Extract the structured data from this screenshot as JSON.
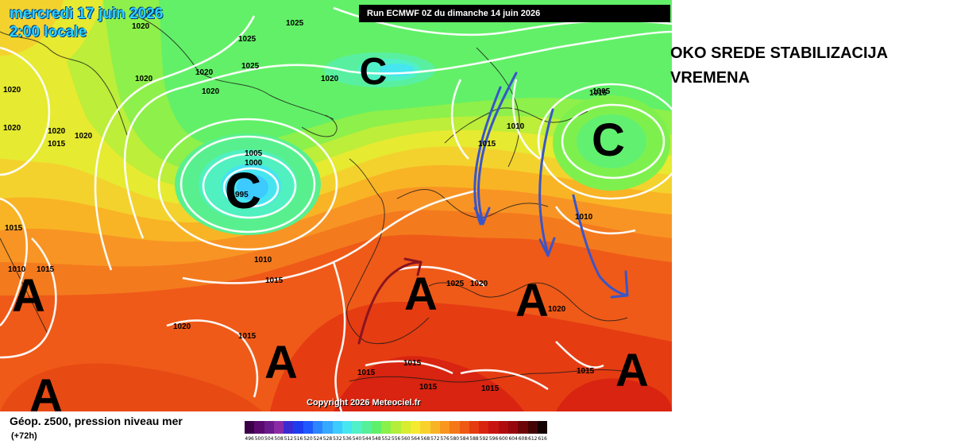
{
  "map": {
    "date_label": "mercredi 17 juin 2026",
    "time_label": "2:00 locale",
    "run_banner": "Run ECMWF 0Z du dimanche 14 juin 2026",
    "copyright": "Copyright 2026 Meteociel.fr",
    "high_symbol": "A",
    "low_symbol": "C",
    "isobar_labels": [
      "1020",
      "1025",
      "1025",
      "1020",
      "1020",
      "1020",
      "1025",
      "1020",
      "1020",
      "1020",
      "1020",
      "1005",
      "1000",
      "995",
      "1010",
      "1015",
      "1015",
      "1015",
      "1020",
      "1020",
      "1015",
      "1010",
      "1015",
      "1005",
      "1010",
      "1010",
      "1015",
      "1025",
      "1020",
      "1020",
      "1020",
      "1015",
      "1015",
      "1015",
      "1015",
      "1015",
      "1015"
    ],
    "accent_colors": {
      "isobar": "#ffffff",
      "arrow_blue": "#3a55c8",
      "arrow_red": "#8a1420"
    }
  },
  "caption": {
    "line1": "OKO SREDE STABILIZACIJA",
    "line2": "VREMENA"
  },
  "legend": {
    "title": "Géop. z500, pression niveau mer",
    "subtitle": "(+72h)",
    "ticks": [
      "496",
      "500",
      "504",
      "508",
      "512",
      "516",
      "520",
      "524",
      "528",
      "532",
      "536",
      "540",
      "544",
      "548",
      "552",
      "556",
      "560",
      "564",
      "568",
      "572",
      "576",
      "580",
      "584",
      "588",
      "592",
      "596",
      "600",
      "604",
      "608",
      "612",
      "616"
    ],
    "colors": [
      "#3b0048",
      "#5a0a6e",
      "#6a1a8a",
      "#8b2aa6",
      "#3a2bd0",
      "#1d3cf0",
      "#2058ff",
      "#2c84ff",
      "#35a8ff",
      "#3ccaff",
      "#46e6f0",
      "#50f0c8",
      "#55f098",
      "#5ef06a",
      "#8af04a",
      "#b2ee3a",
      "#d8ec30",
      "#f4ea30",
      "#f8d22a",
      "#f8b424",
      "#f8961e",
      "#f47818",
      "#ee5a14",
      "#e63c12",
      "#d82410",
      "#c81410",
      "#b00c0e",
      "#96080c",
      "#6e0608",
      "#440404",
      "#140202"
    ]
  }
}
